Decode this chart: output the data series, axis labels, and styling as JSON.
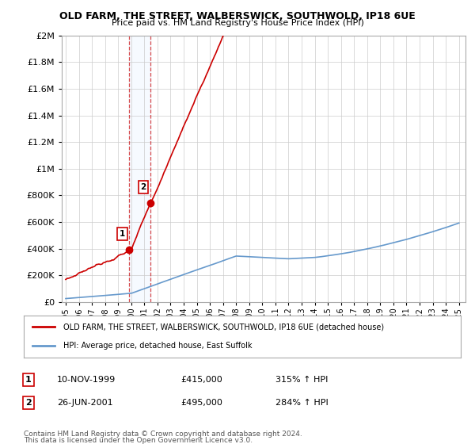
{
  "title": "OLD FARM, THE STREET, WALBERSWICK, SOUTHWOLD, IP18 6UE",
  "subtitle": "Price paid vs. HM Land Registry's House Price Index (HPI)",
  "legend_line1": "OLD FARM, THE STREET, WALBERSWICK, SOUTHWOLD, IP18 6UE (detached house)",
  "legend_line2": "HPI: Average price, detached house, East Suffolk",
  "transaction1_date": "10-NOV-1999",
  "transaction1_price": "£415,000",
  "transaction1_hpi": "315% ↑ HPI",
  "transaction1_year": 1999.86,
  "transaction1_value": 415000,
  "transaction2_date": "26-JUN-2001",
  "transaction2_price": "£495,000",
  "transaction2_hpi": "284% ↑ HPI",
  "transaction2_year": 2001.48,
  "transaction2_value": 495000,
  "footnote1": "Contains HM Land Registry data © Crown copyright and database right 2024.",
  "footnote2": "This data is licensed under the Open Government Licence v3.0.",
  "hpi_color": "#6699cc",
  "price_color": "#cc0000",
  "vline_color": "#cc0000",
  "highlight_color": "#ddeeff",
  "background_color": "#ffffff",
  "grid_color": "#cccccc",
  "ylim_max": 2000000,
  "xmin": 1994.7,
  "xmax": 2025.5
}
